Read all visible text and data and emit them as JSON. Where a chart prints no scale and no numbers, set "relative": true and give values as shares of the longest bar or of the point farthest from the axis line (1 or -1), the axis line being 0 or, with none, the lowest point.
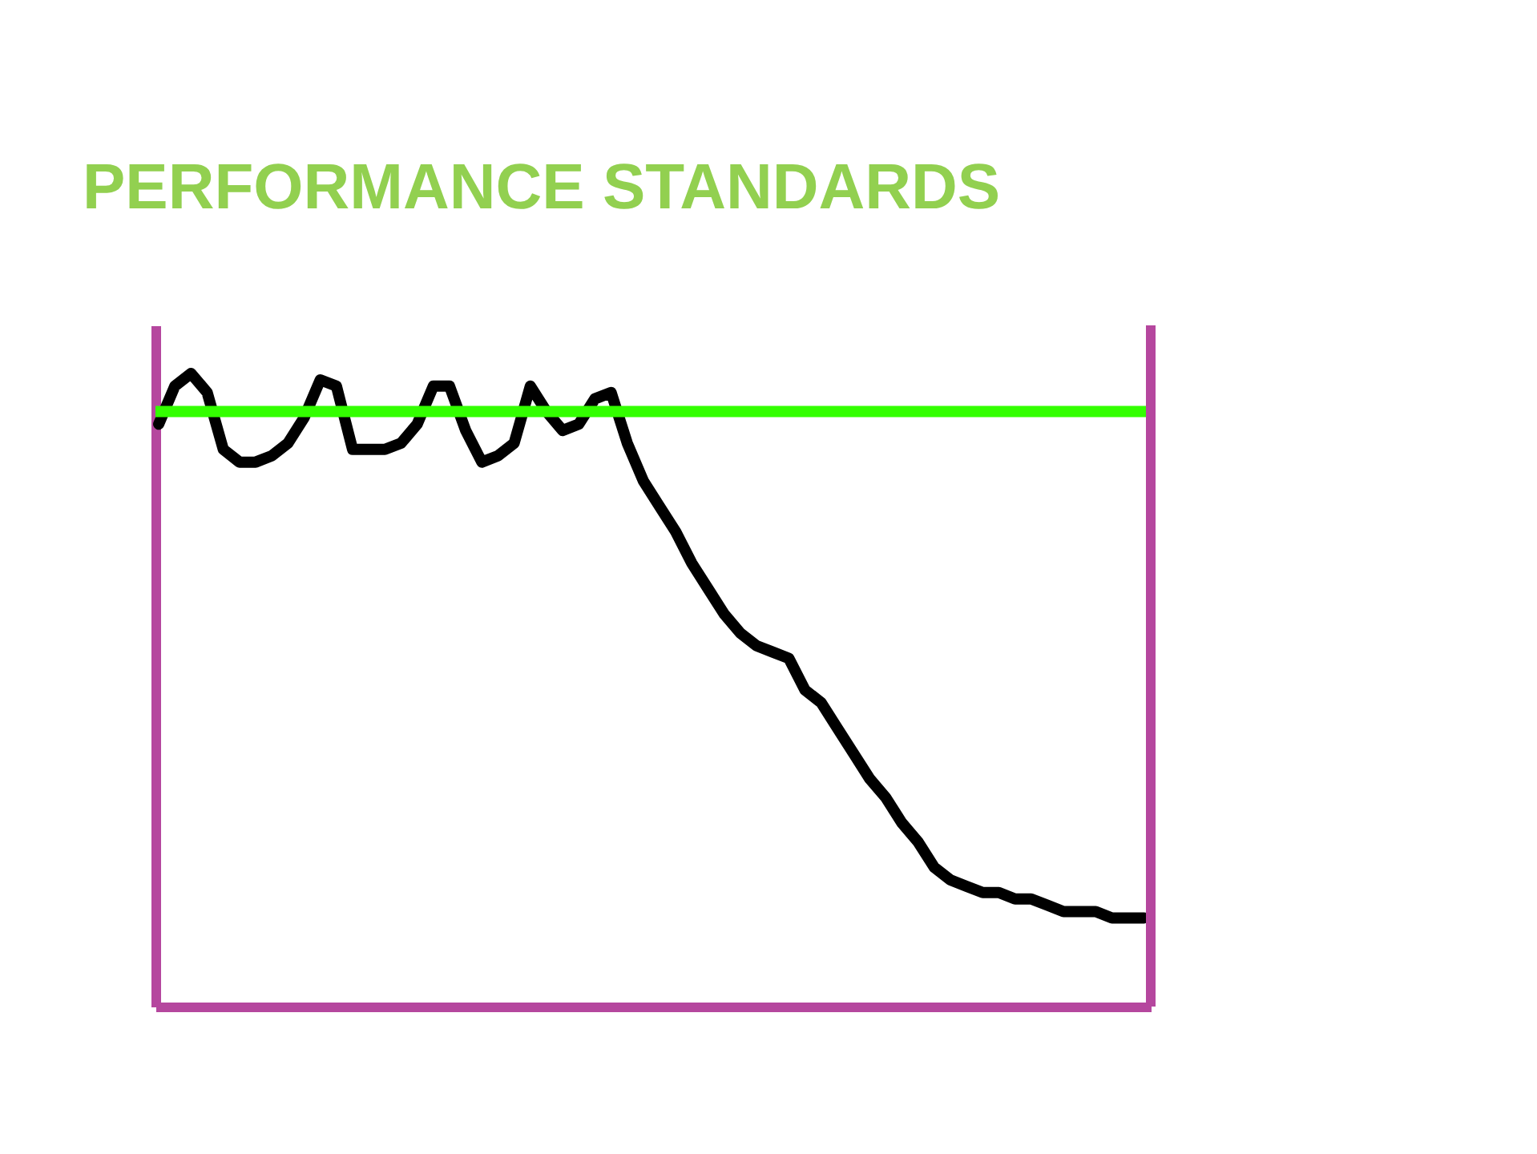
{
  "chart_data": {
    "type": "line",
    "title": "PERFORMANCE STANDARDS",
    "relative": true,
    "tick_labels": false,
    "grid": false,
    "legend": false,
    "line_style": "solid",
    "categories": [
      null,
      null,
      null,
      null,
      null,
      null,
      null,
      null,
      null,
      null,
      null,
      null,
      null,
      null,
      null,
      null,
      null,
      null,
      null,
      null,
      null,
      null,
      null,
      null,
      null,
      null,
      null,
      null,
      null,
      null,
      null,
      null,
      null,
      null,
      null,
      null,
      null,
      null,
      null,
      null,
      null,
      null,
      null,
      null,
      null,
      null,
      null,
      null,
      null,
      null,
      null,
      null,
      null,
      null,
      null,
      null,
      null,
      null,
      null,
      null,
      null,
      null
    ],
    "series": [
      {
        "color": "#000000",
        "values": [
          0.92,
          0.98,
          1.0,
          0.97,
          0.88,
          0.86,
          0.86,
          0.87,
          0.89,
          0.93,
          0.99,
          0.98,
          0.88,
          0.88,
          0.88,
          0.89,
          0.92,
          0.98,
          0.98,
          0.91,
          0.86,
          0.87,
          0.89,
          0.98,
          0.94,
          0.91,
          0.92,
          0.96,
          0.97,
          0.89,
          0.83,
          0.79,
          0.75,
          0.7,
          0.66,
          0.62,
          0.59,
          0.57,
          0.56,
          0.55,
          0.5,
          0.48,
          0.44,
          0.4,
          0.36,
          0.33,
          0.29,
          0.26,
          0.22,
          0.2,
          0.19,
          0.18,
          0.18,
          0.17,
          0.17,
          0.16,
          0.15,
          0.15,
          0.15,
          0.14,
          0.14,
          0.14
        ]
      }
    ],
    "ref_lines": [
      {
        "axis": "y",
        "value": 0.94,
        "color": "#33ff00",
        "line_style": "solid"
      }
    ]
  }
}
